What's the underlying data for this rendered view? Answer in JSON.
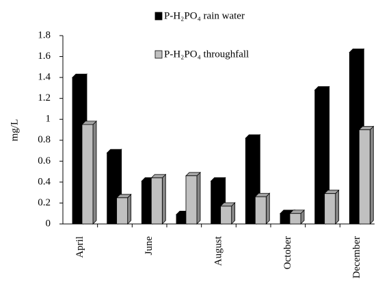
{
  "chart_data": {
    "type": "bar3d",
    "y_label": "mg/L",
    "categories": [
      "April",
      null,
      "June",
      null,
      "August",
      null,
      "October",
      null,
      "December"
    ],
    "series": [
      {
        "name": "P-H₂PO₄ rain water",
        "color": "#000000",
        "values": [
          1.4,
          0.68,
          0.41,
          0.09,
          0.41,
          0.82,
          0.1,
          1.28,
          1.64
        ]
      },
      {
        "name": "P-H₂PO₄ throughfall",
        "color": "#c0c0c0",
        "values": [
          0.95,
          0.25,
          0.44,
          0.46,
          0.17,
          0.26,
          0.1,
          0.29,
          0.9
        ]
      }
    ],
    "ylim": [
      0,
      1.8
    ],
    "yticks": [
      0,
      0.2,
      0.4,
      0.6,
      0.8,
      1,
      1.2,
      1.4,
      1.6,
      1.8
    ],
    "grid": false
  }
}
